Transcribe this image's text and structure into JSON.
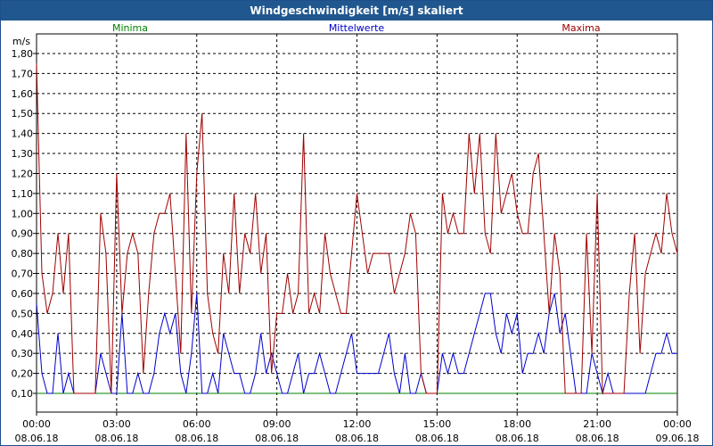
{
  "window": {
    "title": "Windgeschwindigkeit [m/s] skaliert"
  },
  "colors": {
    "minima": "#008000",
    "mittel": "#0000cc",
    "maxima": "#a00000",
    "title_bg": "#20578f"
  },
  "chart_data": {
    "type": "line",
    "title": "Windgeschwindigkeit [m/s] skaliert",
    "ylabel": "m/s",
    "ylim": [
      0.1,
      1.8
    ],
    "ytick_values": [
      0.1,
      0.2,
      0.3,
      0.4,
      0.5,
      0.6,
      0.7,
      0.8,
      0.9,
      1.0,
      1.1,
      1.2,
      1.3,
      1.4,
      1.5,
      1.6,
      1.7,
      1.8
    ],
    "ytick_labels": [
      "0,10",
      "0,20",
      "0,30",
      "0,40",
      "0,50",
      "0,60",
      "0,70",
      "0,80",
      "0,90",
      "1,00",
      "1,10",
      "1,20",
      "1,30",
      "1,40",
      "1,50",
      "1,60",
      "1,70",
      "1,80"
    ],
    "xlim_hours": [
      0,
      24
    ],
    "xtick_hours": [
      0,
      3,
      6,
      9,
      12,
      15,
      18,
      21,
      24
    ],
    "xtick_times": [
      "00:00",
      "03:00",
      "06:00",
      "09:00",
      "12:00",
      "15:00",
      "18:00",
      "21:00",
      "00:00"
    ],
    "xtick_dates": [
      "08.06.18",
      "08.06.18",
      "08.06.18",
      "08.06.18",
      "08.06.18",
      "08.06.18",
      "08.06.18",
      "08.06.18",
      "09.06.18"
    ],
    "series": [
      {
        "name": "Minima",
        "color": "#008000",
        "x_hours": [
          0,
          24
        ],
        "values": [
          0.1,
          0.1
        ]
      },
      {
        "name": "Mittelwerte",
        "color": "#0000cc",
        "x_hours": [
          0,
          0.2,
          0.4,
          0.6,
          0.8,
          1.0,
          1.2,
          1.4,
          1.6,
          1.8,
          2.0,
          2.2,
          2.4,
          2.6,
          2.8,
          3.0,
          3.2,
          3.4,
          3.6,
          3.8,
          4.0,
          4.2,
          4.4,
          4.6,
          4.8,
          5.0,
          5.2,
          5.4,
          5.6,
          5.8,
          6.0,
          6.2,
          6.4,
          6.6,
          6.8,
          7.0,
          7.2,
          7.4,
          7.6,
          7.8,
          8.0,
          8.2,
          8.4,
          8.6,
          8.8,
          9.0,
          9.2,
          9.4,
          9.6,
          9.8,
          10.0,
          10.2,
          10.4,
          10.6,
          10.8,
          11.0,
          11.2,
          11.4,
          11.6,
          11.8,
          12.0,
          12.2,
          12.4,
          12.6,
          12.8,
          13.0,
          13.2,
          13.4,
          13.6,
          13.8,
          14.0,
          14.2,
          14.4,
          14.6,
          14.8,
          15.0,
          15.2,
          15.4,
          15.6,
          15.8,
          16.0,
          16.2,
          16.4,
          16.6,
          16.8,
          17.0,
          17.2,
          17.4,
          17.6,
          17.8,
          18.0,
          18.2,
          18.4,
          18.6,
          18.8,
          19.0,
          19.2,
          19.4,
          19.6,
          19.8,
          20.0,
          20.2,
          20.4,
          20.6,
          20.8,
          21.0,
          21.2,
          21.4,
          21.6,
          21.8,
          22.0,
          22.2,
          22.4,
          22.6,
          22.8,
          23.0,
          23.2,
          23.4,
          23.6,
          23.8,
          24.0
        ],
        "values": [
          0.55,
          0.2,
          0.1,
          0.1,
          0.4,
          0.1,
          0.2,
          0.1,
          0.1,
          0.1,
          0.1,
          0.1,
          0.3,
          0.2,
          0.1,
          0.1,
          0.5,
          0.1,
          0.1,
          0.2,
          0.1,
          0.1,
          0.2,
          0.4,
          0.5,
          0.4,
          0.5,
          0.2,
          0.1,
          0.3,
          0.6,
          0.1,
          0.1,
          0.2,
          0.1,
          0.4,
          0.3,
          0.2,
          0.2,
          0.1,
          0.1,
          0.2,
          0.4,
          0.2,
          0.3,
          0.2,
          0.1,
          0.1,
          0.2,
          0.3,
          0.1,
          0.2,
          0.2,
          0.3,
          0.2,
          0.1,
          0.1,
          0.2,
          0.3,
          0.4,
          0.2,
          0.2,
          0.2,
          0.2,
          0.2,
          0.3,
          0.4,
          0.2,
          0.1,
          0.3,
          0.1,
          0.1,
          0.2,
          0.1,
          0.1,
          0.1,
          0.3,
          0.2,
          0.3,
          0.2,
          0.2,
          0.3,
          0.4,
          0.5,
          0.6,
          0.6,
          0.4,
          0.3,
          0.5,
          0.4,
          0.5,
          0.2,
          0.3,
          0.3,
          0.4,
          0.3,
          0.5,
          0.6,
          0.4,
          0.5,
          0.3,
          0.1,
          0.1,
          0.1,
          0.3,
          0.2,
          0.1,
          0.2,
          0.1,
          0.1,
          0.1,
          0.1,
          0.1,
          0.1,
          0.1,
          0.2,
          0.3,
          0.3,
          0.4,
          0.3,
          0.3
        ]
      },
      {
        "name": "Maxima",
        "color": "#a00000",
        "x_hours": [
          0,
          0.2,
          0.4,
          0.6,
          0.8,
          1.0,
          1.2,
          1.4,
          1.6,
          1.8,
          2.0,
          2.2,
          2.4,
          2.6,
          2.8,
          3.0,
          3.2,
          3.4,
          3.6,
          3.8,
          4.0,
          4.2,
          4.4,
          4.6,
          4.8,
          5.0,
          5.2,
          5.4,
          5.6,
          5.8,
          6.0,
          6.2,
          6.4,
          6.6,
          6.8,
          7.0,
          7.2,
          7.4,
          7.6,
          7.8,
          8.0,
          8.2,
          8.4,
          8.6,
          8.8,
          9.0,
          9.2,
          9.4,
          9.6,
          9.8,
          10.0,
          10.2,
          10.4,
          10.6,
          10.8,
          11.0,
          11.2,
          11.4,
          11.6,
          11.8,
          12.0,
          12.2,
          12.4,
          12.6,
          12.8,
          13.0,
          13.2,
          13.4,
          13.6,
          13.8,
          14.0,
          14.2,
          14.4,
          14.6,
          14.8,
          15.0,
          15.2,
          15.4,
          15.6,
          15.8,
          16.0,
          16.2,
          16.4,
          16.6,
          16.8,
          17.0,
          17.2,
          17.4,
          17.6,
          17.8,
          18.0,
          18.2,
          18.4,
          18.6,
          18.8,
          19.0,
          19.2,
          19.4,
          19.6,
          19.8,
          20.0,
          20.2,
          20.4,
          20.6,
          20.8,
          21.0,
          21.2,
          21.4,
          21.6,
          21.8,
          22.0,
          22.2,
          22.4,
          22.6,
          22.8,
          23.0,
          23.2,
          23.4,
          23.6,
          23.8,
          24.0
        ],
        "values": [
          1.75,
          0.7,
          0.5,
          0.6,
          0.9,
          0.6,
          0.9,
          0.1,
          0.1,
          0.1,
          0.1,
          0.1,
          1.0,
          0.8,
          0.1,
          1.2,
          0.5,
          0.8,
          0.9,
          0.8,
          0.2,
          0.6,
          0.9,
          1.0,
          1.0,
          1.1,
          0.7,
          0.3,
          1.4,
          0.5,
          1.2,
          1.5,
          0.6,
          0.4,
          0.3,
          0.8,
          0.6,
          1.1,
          0.6,
          0.9,
          0.8,
          1.1,
          0.7,
          0.9,
          0.2,
          0.5,
          0.5,
          0.7,
          0.5,
          0.6,
          1.4,
          0.5,
          0.6,
          0.5,
          0.9,
          0.7,
          0.6,
          0.5,
          0.5,
          0.8,
          1.1,
          0.9,
          0.7,
          0.8,
          0.8,
          0.8,
          0.8,
          0.6,
          0.7,
          0.8,
          1.0,
          0.9,
          0.2,
          0.1,
          0.1,
          0.1,
          1.1,
          0.9,
          1.0,
          0.9,
          0.9,
          1.4,
          1.1,
          1.4,
          0.9,
          0.8,
          1.4,
          1.0,
          1.1,
          1.2,
          1.0,
          0.9,
          0.9,
          1.2,
          1.3,
          0.9,
          0.5,
          0.9,
          0.7,
          0.1,
          0.1,
          0.1,
          0.1,
          0.9,
          0.3,
          1.1,
          0.1,
          0.1,
          0.1,
          0.1,
          0.1,
          0.6,
          0.9,
          0.3,
          0.7,
          0.8,
          0.9,
          0.8,
          1.1,
          0.9,
          0.8
        ]
      }
    ]
  }
}
